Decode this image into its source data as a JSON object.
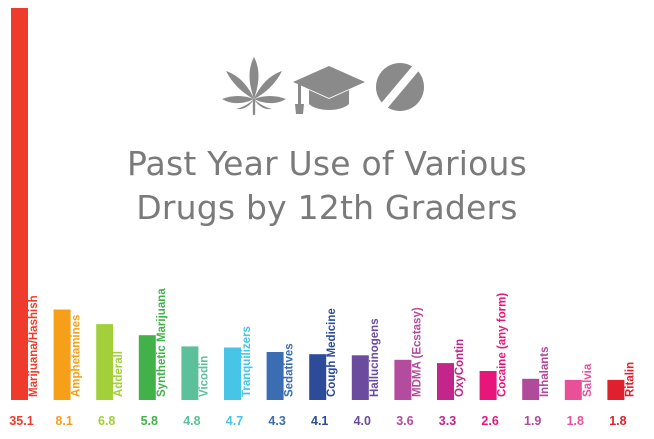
{
  "title_lines": [
    "Past Year Use of Various",
    "Drugs by 12th Graders"
  ],
  "icons": [
    "cannabis-leaf-icon",
    "graduation-cap-icon",
    "pill-icon"
  ],
  "icon_color": "#8a8a8a",
  "chart_data": {
    "type": "bar",
    "title": "Past Year Use of Various Drugs by 12th Graders",
    "categories": [
      "Marijuana/Hashish",
      "Amphetamines",
      "Adderall",
      "Synthetic Marijuana",
      "Vicodin",
      "Tranquilizers",
      "Sedatives",
      "Cough Medicine",
      "Hallucinogens",
      "MDMA (Ecstasy)",
      "OxyContin",
      "Cocaine (any form)",
      "Inhalants",
      "Salvia",
      "Ritalin"
    ],
    "values": [
      35.1,
      8.1,
      6.8,
      5.8,
      4.8,
      4.7,
      4.3,
      4.1,
      4.0,
      3.6,
      3.3,
      2.6,
      1.9,
      1.8,
      1.8
    ],
    "value_labels": [
      "35.1",
      "8.1",
      "6.8",
      "5.8",
      "4.8",
      "4.7",
      "4.3",
      "4.1",
      "4.0",
      "3.6",
      "3.3",
      "2.6",
      "1.9",
      "1.8",
      "1.8"
    ],
    "colors": [
      "#ef3b2c",
      "#f6a01a",
      "#a3cf3a",
      "#42b14a",
      "#5cc19b",
      "#47c4e6",
      "#3a6db2",
      "#2d4b99",
      "#6b4b9e",
      "#b34b9e",
      "#c2268a",
      "#e8157a",
      "#b04a9a",
      "#e9509a",
      "#e0202e"
    ],
    "ylim": [
      0,
      35.1
    ],
    "grid": false,
    "legend": "none"
  }
}
